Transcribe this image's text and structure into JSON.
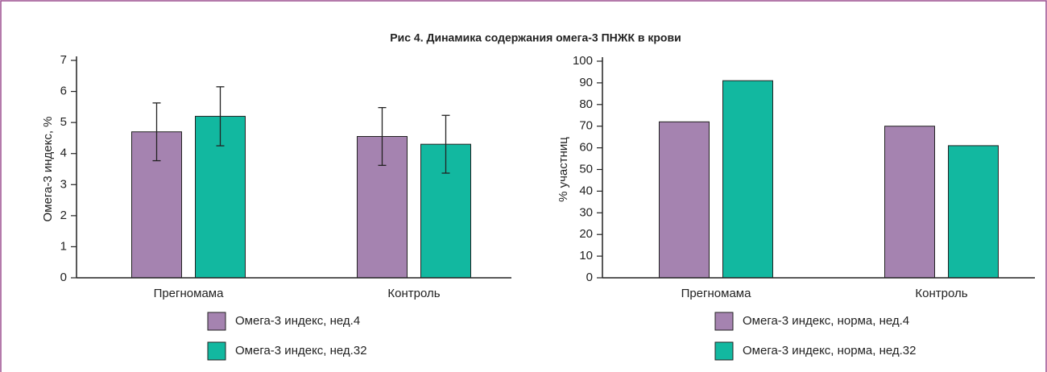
{
  "title": "Рис 4. Динамика содержания омега-3 ПНЖК в крови",
  "chart_data": [
    {
      "type": "bar",
      "ylabel": "Омега-3 индекс, %",
      "categories": [
        "Прегномама",
        "Контроль"
      ],
      "series": [
        {
          "name": "Омега-3 индекс, нед.4",
          "color": "#a583b0",
          "values": [
            4.7,
            4.55
          ],
          "errors": [
            0.93,
            0.93
          ]
        },
        {
          "name": "Омега-3 индекс, нед.32",
          "color": "#12b8a0",
          "values": [
            5.2,
            4.3
          ],
          "errors": [
            0.95,
            0.93
          ]
        }
      ],
      "ylim": [
        0,
        7
      ],
      "yticks": [
        0,
        1,
        2,
        3,
        4,
        5,
        6,
        7
      ]
    },
    {
      "type": "bar",
      "ylabel": "% участниц",
      "categories": [
        "Прегномама",
        "Контроль"
      ],
      "series": [
        {
          "name": "Омега-3 индекс, норма, нед.4",
          "color": "#a583b0",
          "values": [
            72,
            70
          ]
        },
        {
          "name": "Омега-3 индекс, норма, нед.32",
          "color": "#12b8a0",
          "values": [
            91,
            61
          ]
        }
      ],
      "ylim": [
        0,
        100
      ],
      "yticks": [
        0,
        10,
        20,
        30,
        40,
        50,
        60,
        70,
        80,
        90,
        100
      ]
    }
  ]
}
